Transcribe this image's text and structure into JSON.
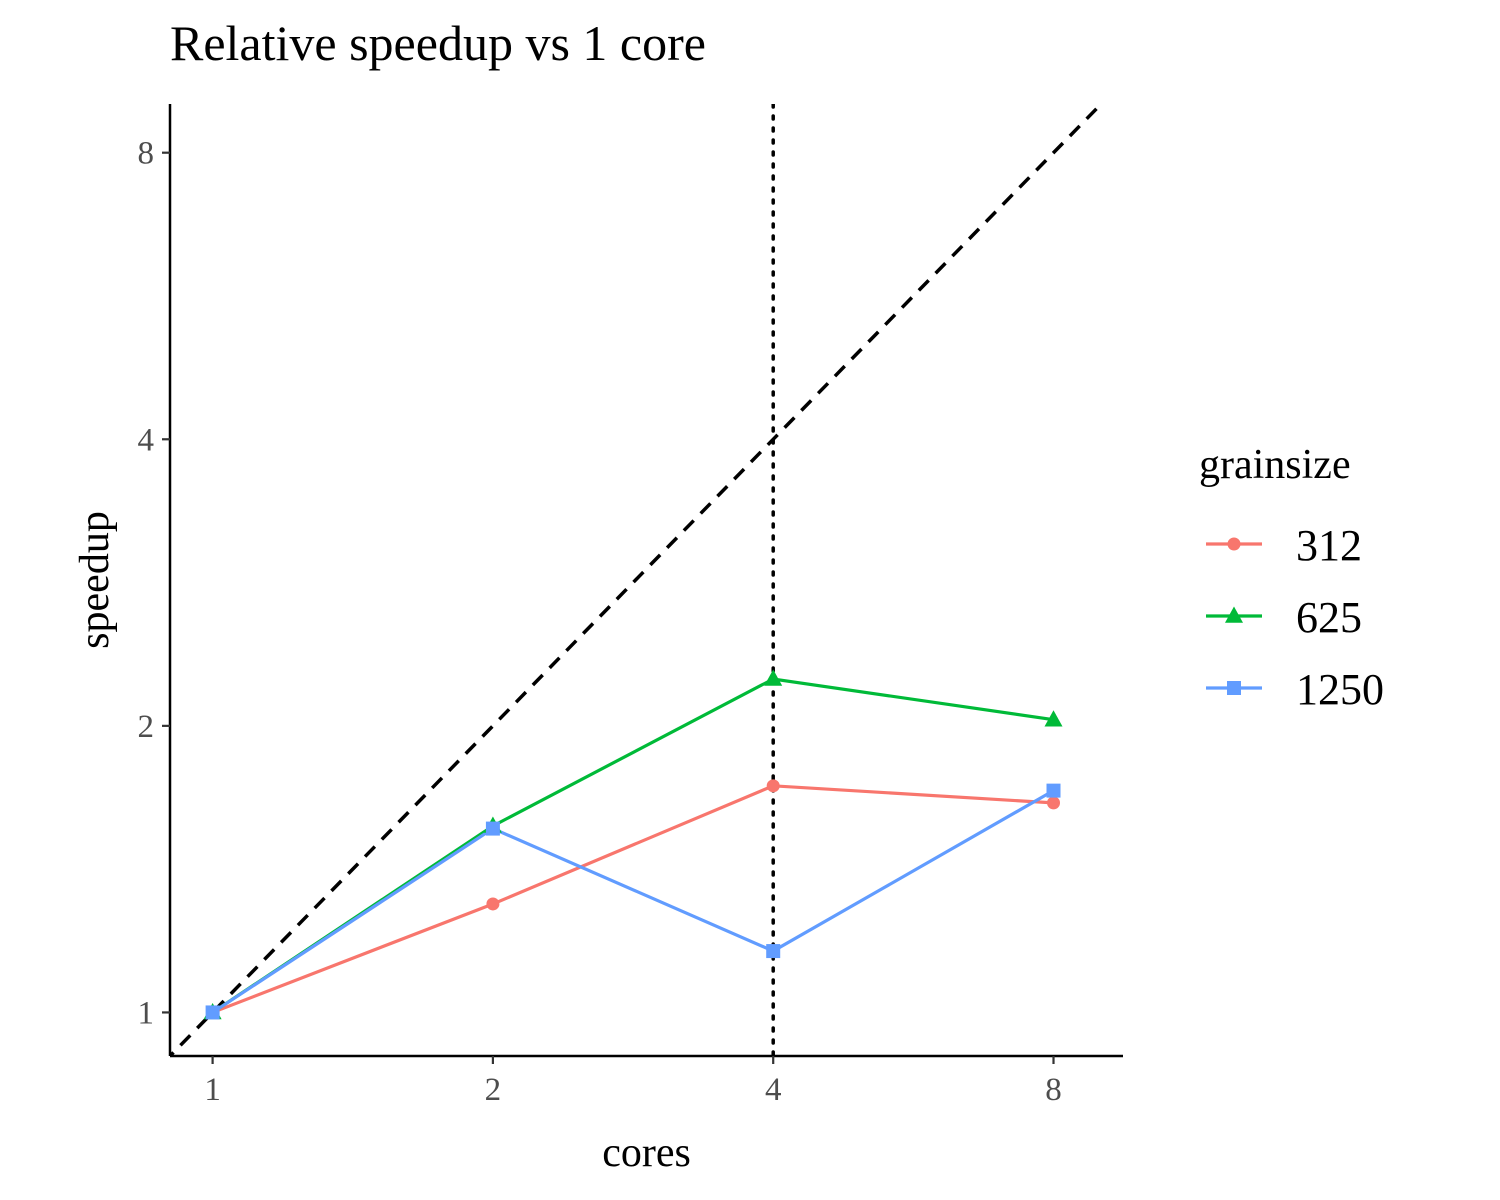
{
  "chart_data": {
    "type": "line",
    "title": "Relative speedup vs 1 core",
    "xlabel": "cores",
    "ylabel": "speedup",
    "x_scale": "log2",
    "y_scale": "log2",
    "x": [
      1,
      2,
      4,
      8
    ],
    "x_tick_labels": [
      "1",
      "2",
      "4",
      "8"
    ],
    "y_ticks": [
      1,
      2,
      4,
      8
    ],
    "y_tick_labels": [
      "1",
      "2",
      "4",
      "8"
    ],
    "xlim": [
      0.9,
      9.5
    ],
    "ylim": [
      0.9,
      9.0
    ],
    "legend_title": "grainsize",
    "legend_position": "right",
    "grid": false,
    "series": [
      {
        "name": "312",
        "color": "#F8766D",
        "marker": "circle",
        "values": [
          1.0,
          1.3,
          1.73,
          1.66
        ]
      },
      {
        "name": "625",
        "color": "#00BA38",
        "marker": "triangle",
        "values": [
          1.0,
          1.57,
          2.24,
          2.03
        ]
      },
      {
        "name": "1250",
        "color": "#619CFF",
        "marker": "square",
        "values": [
          1.0,
          1.56,
          1.16,
          1.71
        ]
      }
    ],
    "reference_lines": [
      {
        "kind": "diagonal",
        "style": "dashed",
        "color": "#000000",
        "description": "y = x"
      },
      {
        "kind": "vertical",
        "style": "dotted",
        "color": "#000000",
        "x": 4
      }
    ]
  }
}
